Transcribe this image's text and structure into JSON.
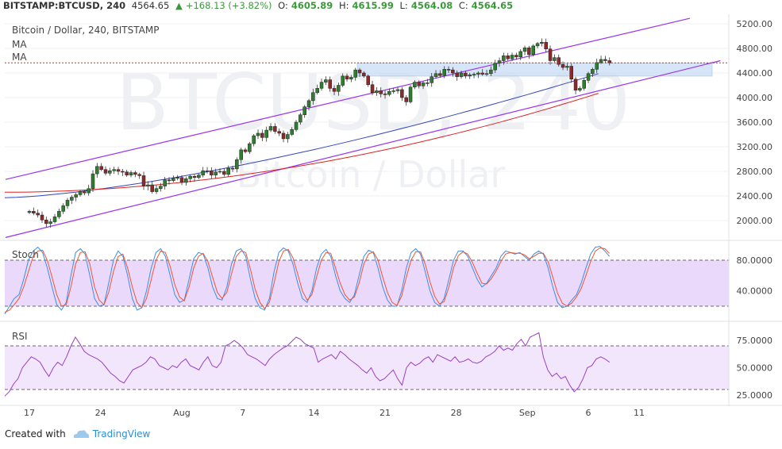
{
  "header": {
    "symbol": "BITSTAMP:BTCUSD, 240",
    "last": "4564.65",
    "change": "+168.13 (+3.82%)",
    "o_label": "O:",
    "o": "4605.89",
    "h_label": "H:",
    "h": "4615.99",
    "l_label": "L:",
    "l": "4564.08",
    "c_label": "C:",
    "c": "4564.65"
  },
  "legend": {
    "title": "Bitcoin / Dollar, 240, BITSTAMP",
    "ma1": "MA",
    "ma2": "MA"
  },
  "watermark": {
    "big": "BTCUSD, 240",
    "small": "Bitcoin / Dollar"
  },
  "indicators": {
    "stoch": "Stoch",
    "rsi": "RSI"
  },
  "footer": {
    "created": "Created with",
    "brand": "TradingView"
  },
  "colors": {
    "up": "#2f7d2f",
    "down": "#8a2a2a",
    "channel": "#9933ee",
    "ma_fast": "#3344bb",
    "ma_slow": "#dd2222",
    "zone": "#c9ddf5",
    "indicator_band": "#e7d2fb",
    "stoch_k": "#3b8ee8",
    "stoch_d": "#ee5533",
    "rsi_line": "#9a3fc4"
  },
  "chart_data": [
    {
      "type": "candlestick",
      "title": "Bitcoin / Dollar, 240, BITSTAMP",
      "y_ticks": [
        2000,
        2400,
        2800,
        3200,
        3600,
        4000,
        4400,
        4800,
        5200
      ],
      "y_tick_labels": [
        "2000.00",
        "2400.00",
        "2800.00",
        "3200.00",
        "3600.00",
        "4000.00",
        "4400.00",
        "4800.00",
        "5200.00"
      ],
      "ylim": [
        1600,
        5400
      ],
      "x_tick_labels": [
        "17",
        "24",
        "Aug",
        "7",
        "14",
        "21",
        "28",
        "Sep",
        "6",
        "11"
      ],
      "x_tick_days": [
        0,
        7,
        15,
        21,
        28,
        35,
        42,
        49,
        55,
        60
      ],
      "last_price": 4564.65,
      "trend_channel": {
        "upper": [
          {
            "day": 0,
            "price": 2760
          },
          {
            "day": 65,
            "price": 5290
          }
        ],
        "lower": [
          {
            "day": 0,
            "price": 1820
          },
          {
            "day": 68,
            "price": 4600
          }
        ]
      },
      "resistance_zone": [
        4350,
        4560
      ],
      "closes": [
        2150,
        2120,
        2090,
        2010,
        1950,
        1980,
        2060,
        2150,
        2240,
        2330,
        2380,
        2420,
        2470,
        2450,
        2520,
        2760,
        2880,
        2830,
        2770,
        2810,
        2830,
        2800,
        2790,
        2740,
        2780,
        2750,
        2730,
        2560,
        2580,
        2470,
        2520,
        2560,
        2660,
        2650,
        2690,
        2700,
        2620,
        2680,
        2720,
        2700,
        2740,
        2810,
        2810,
        2740,
        2790,
        2800,
        2750,
        2850,
        2840,
        2990,
        3150,
        3120,
        3250,
        3380,
        3420,
        3350,
        3470,
        3530,
        3450,
        3420,
        3330,
        3400,
        3480,
        3600,
        3720,
        3850,
        3950,
        4080,
        4150,
        4250,
        4290,
        4150,
        4100,
        4200,
        4350,
        4300,
        4330,
        4450,
        4400,
        4350,
        4210,
        4080,
        4110,
        4060,
        4050,
        4100,
        4110,
        4130,
        4000,
        3930,
        4170,
        4250,
        4190,
        4240,
        4240,
        4340,
        4390,
        4360,
        4460,
        4450,
        4400,
        4340,
        4400,
        4350,
        4370,
        4380,
        4400,
        4380,
        4390,
        4450,
        4560,
        4600,
        4680,
        4630,
        4690,
        4660,
        4750,
        4810,
        4700,
        4840,
        4880,
        4900,
        4790,
        4600,
        4650,
        4540,
        4490,
        4510,
        4300,
        4120,
        4150,
        4280,
        4390,
        4460,
        4570,
        4620,
        4600,
        4565
      ],
      "ma_fast_ends": [
        {
          "day": 0,
          "price": 2370
        },
        {
          "day": 56,
          "price": 4390
        }
      ],
      "ma_slow_ends": [
        {
          "day": 0,
          "price": 2460
        },
        {
          "day": 56,
          "price": 4070
        }
      ]
    },
    {
      "type": "line",
      "title": "Stoch",
      "y_ticks": [
        40,
        80
      ],
      "y_tick_labels": [
        "40.0000",
        "80.0000"
      ],
      "ylim": [
        0,
        110
      ],
      "band": [
        20,
        80
      ],
      "series": [
        {
          "values": [
            10,
            20,
            30,
            35,
            55,
            80,
            92,
            97,
            90,
            70,
            45,
            22,
            15,
            25,
            60,
            90,
            95,
            88,
            60,
            30,
            20,
            22,
            50,
            80,
            92,
            85,
            60,
            30,
            15,
            18,
            40,
            70,
            90,
            95,
            85,
            60,
            35,
            25,
            28,
            55,
            82,
            90,
            88,
            70,
            45,
            30,
            28,
            45,
            75,
            92,
            95,
            85,
            55,
            30,
            18,
            15,
            30,
            65,
            90,
            96,
            92,
            75,
            50,
            30,
            25,
            40,
            70,
            88,
            94,
            85,
            60,
            40,
            30,
            25,
            35,
            60,
            85,
            93,
            90,
            70,
            45,
            28,
            20,
            20,
            40,
            70,
            90,
            95,
            88,
            65,
            40,
            25,
            20,
            30,
            55,
            80,
            92,
            92,
            85,
            70,
            55,
            45,
            50,
            60,
            70,
            85,
            92,
            90,
            88,
            90,
            85,
            80,
            88,
            92,
            88,
            70,
            45,
            25,
            18,
            20,
            28,
            35,
            50,
            70,
            88,
            97,
            98,
            92,
            85
          ]
        },
        {
          "values": [
            12,
            15,
            22,
            30,
            45,
            65,
            85,
            92,
            93,
            80,
            58,
            35,
            20,
            22,
            45,
            75,
            90,
            91,
            75,
            45,
            28,
            22,
            38,
            65,
            85,
            88,
            70,
            45,
            25,
            18,
            30,
            55,
            80,
            92,
            90,
            72,
            48,
            32,
            27,
            45,
            70,
            85,
            89,
            78,
            58,
            38,
            30,
            38,
            62,
            85,
            92,
            90,
            68,
            42,
            25,
            17,
            25,
            50,
            78,
            92,
            94,
            83,
            62,
            40,
            28,
            35,
            58,
            80,
            90,
            89,
            70,
            50,
            35,
            28,
            32,
            50,
            75,
            88,
            91,
            80,
            58,
            38,
            25,
            21,
            33,
            58,
            80,
            91,
            91,
            75,
            52,
            33,
            23,
            26,
            45,
            70,
            86,
            91,
            88,
            77,
            63,
            50,
            49,
            56,
            66,
            78,
            88,
            90,
            89,
            89,
            87,
            82,
            85,
            89,
            89,
            78,
            58,
            37,
            24,
            20,
            24,
            32,
            43,
            60,
            78,
            92,
            96,
            95,
            89
          ]
        }
      ]
    },
    {
      "type": "line",
      "title": "RSI",
      "y_ticks": [
        25,
        50,
        75
      ],
      "y_tick_labels": [
        "25.0000",
        "50.0000",
        "75.0000"
      ],
      "ylim": [
        20,
        85
      ],
      "band": [
        30,
        70
      ],
      "series": [
        {
          "values": [
            24,
            28,
            35,
            40,
            50,
            55,
            60,
            58,
            55,
            48,
            42,
            50,
            55,
            52,
            60,
            70,
            78,
            72,
            65,
            62,
            60,
            58,
            55,
            50,
            45,
            42,
            38,
            36,
            42,
            48,
            50,
            52,
            55,
            60,
            58,
            52,
            50,
            48,
            52,
            50,
            55,
            58,
            52,
            50,
            48,
            55,
            60,
            52,
            50,
            55,
            70,
            72,
            75,
            72,
            68,
            62,
            60,
            58,
            55,
            52,
            58,
            62,
            65,
            68,
            70,
            74,
            78,
            76,
            72,
            70,
            68,
            55,
            58,
            60,
            62,
            58,
            65,
            62,
            58,
            55,
            52,
            48,
            45,
            50,
            42,
            38,
            40,
            44,
            48,
            40,
            34,
            50,
            55,
            52,
            54,
            58,
            60,
            55,
            62,
            60,
            58,
            56,
            60,
            55,
            56,
            58,
            55,
            54,
            56,
            60,
            62,
            65,
            70,
            66,
            68,
            66,
            72,
            76,
            70,
            78,
            80,
            82,
            60,
            48,
            42,
            45,
            40,
            42,
            34,
            28,
            32,
            40,
            50,
            52,
            58,
            60,
            58,
            55
          ]
        }
      ]
    }
  ]
}
